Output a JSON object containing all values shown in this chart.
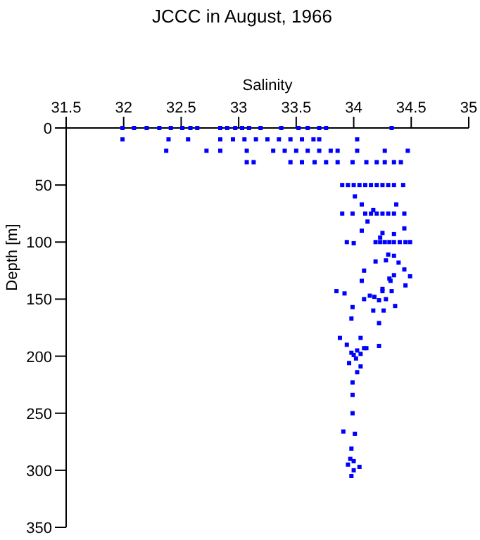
{
  "chart_data": {
    "type": "scatter",
    "title": "JCCC in August, 1966",
    "xlabel": "Salinity",
    "ylabel": "Depth [m]",
    "xlim": [
      31.5,
      35
    ],
    "xticks": [
      31.5,
      32,
      32.5,
      33,
      33.5,
      34,
      34.5,
      35
    ],
    "ylim": [
      350,
      0
    ],
    "yticks": [
      0,
      50,
      100,
      150,
      200,
      250,
      300,
      350
    ],
    "grid": false,
    "marker": "square",
    "series": [
      {
        "color": "#0000ff",
        "x": [
          31.99,
          32.09,
          32.2,
          32.31,
          32.41,
          32.51,
          32.58,
          32.64,
          32.84,
          32.9,
          32.97,
          33.03,
          33.09,
          33.19,
          33.37,
          33.52,
          33.6,
          33.7,
          33.76,
          34.33,
          31.99,
          32.39,
          32.56,
          32.84,
          32.95,
          33.05,
          33.15,
          33.25,
          33.35,
          33.45,
          33.55,
          33.65,
          33.7,
          34.03,
          32.37,
          32.72,
          32.84,
          33.07,
          33.3,
          33.4,
          33.5,
          33.6,
          33.7,
          33.8,
          33.86,
          34.03,
          34.27,
          34.47,
          33.07,
          33.13,
          33.45,
          33.55,
          33.66,
          33.76,
          33.86,
          33.99,
          34.11,
          34.2,
          34.27,
          34.35,
          34.41,
          33.9,
          33.95,
          34.0,
          34.05,
          34.1,
          34.15,
          34.2,
          34.25,
          34.3,
          34.35,
          34.43,
          34.01,
          34.07,
          34.37,
          33.9,
          33.99,
          34.1,
          34.15,
          34.2,
          34.25,
          34.3,
          34.35,
          34.44,
          34.17,
          34.12,
          34.07,
          34.44,
          34.25,
          34.35,
          34.19,
          34.23,
          34.27,
          34.31,
          34.35,
          34.4,
          34.45,
          34.49,
          34.23,
          33.94,
          34.0,
          34.3,
          34.35,
          34.28,
          34.39,
          34.19,
          34.44,
          34.09,
          34.49,
          34.35,
          34.31,
          34.32,
          34.07,
          34.45,
          33.85,
          33.92,
          34.25,
          34.33,
          34.14,
          34.09,
          34.18,
          34.22,
          34.25,
          34.28,
          34.36,
          33.99,
          33.98,
          34.17,
          34.26,
          34.22,
          33.88,
          34.06,
          33.94,
          34.22,
          33.98,
          34.0,
          34.03,
          34.06,
          34.09,
          34.11,
          34.02,
          33.96,
          34.06,
          34.03,
          33.99,
          33.99,
          33.99,
          33.91,
          34.01,
          33.98,
          33.97,
          34.0,
          33.95,
          34.05,
          34.0,
          33.98
        ],
        "values": [
          0,
          0,
          0,
          0,
          0,
          0,
          0,
          0,
          0,
          0,
          0,
          0,
          0,
          0,
          0,
          0,
          0,
          0,
          0,
          0,
          10,
          10,
          10,
          10,
          10,
          10,
          10,
          10,
          10,
          10,
          10,
          10,
          10,
          10,
          20,
          20,
          20,
          20,
          20,
          20,
          20,
          20,
          20,
          20,
          20,
          20,
          20,
          20,
          30,
          30,
          30,
          30,
          30,
          30,
          30,
          30,
          30,
          30,
          30,
          30,
          30,
          50,
          50,
          50,
          50,
          50,
          50,
          50,
          50,
          50,
          50,
          50,
          60,
          67,
          67,
          75,
          75,
          75,
          75,
          75,
          75,
          75,
          75,
          75,
          72,
          82,
          90,
          88,
          92,
          93,
          100,
          100,
          100,
          100,
          100,
          100,
          100,
          100,
          96,
          100,
          101,
          111,
          112,
          116,
          118,
          117,
          124,
          125,
          130,
          129,
          132,
          134,
          134,
          138,
          143,
          145,
          143,
          143,
          147,
          150,
          148,
          151,
          141,
          150,
          156,
          157,
          167,
          160,
          160,
          171,
          184,
          184,
          190,
          191,
          197,
          199,
          195,
          198,
          193,
          193,
          202,
          206,
          209,
          214,
          223,
          234,
          250,
          266,
          268,
          281,
          290,
          292,
          295,
          297,
          300,
          305
        ]
      }
    ]
  }
}
